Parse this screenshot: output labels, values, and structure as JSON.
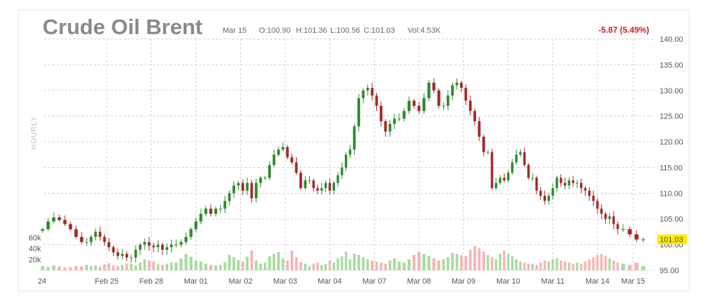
{
  "header": {
    "title": "Crude Oil Brent",
    "date": "Mar 15",
    "open": "O:100.90",
    "high": "H:101.36",
    "low": "L:100.56",
    "close": "C:101.03",
    "volume": "Vol:4.53K",
    "change": "-5.87 (5.49%)"
  },
  "side_label": "HOURLY",
  "colors": {
    "up": "#2e8b2e",
    "down": "#a52a2a",
    "vol_up": "#a8dca0",
    "vol_down": "#f4b6b6",
    "last_bg": "#ffea00",
    "change": "#cc1f1f"
  },
  "chart_data": {
    "type": "candlestick",
    "price_axis": {
      "min": 95,
      "max": 140,
      "ticks": [
        "95.00",
        "100.00",
        "105.00",
        "110.00",
        "115.00",
        "120.00",
        "125.00",
        "130.00",
        "135.00",
        "140.00"
      ]
    },
    "volume_axis": {
      "ticks": [
        "20k",
        "40k",
        "60k"
      ],
      "max": 80000
    },
    "last_price": "101.03",
    "x_ticks": [
      "24",
      "Feb 25",
      "Feb 28",
      "Mar 01",
      "Mar 02",
      "Mar 03",
      "Mar 04",
      "Mar 07",
      "Mar 08",
      "Mar 09",
      "Mar 10",
      "Mar 11",
      "Mar 14",
      "Mar 15"
    ],
    "closes": [
      [
        103.0,
        104.5,
        105.3,
        104.8,
        104.0,
        103.0,
        101.5,
        100.5
      ],
      [
        100.5,
        101.5,
        102.5,
        101.5,
        100.5,
        99.5,
        98.5,
        97.8,
        98.2,
        97.5
      ],
      [
        97.5,
        99.0,
        100.0,
        100.5,
        99.8,
        99.5,
        100.0,
        99.0,
        99.5,
        100.0
      ],
      [
        100.0,
        100.5,
        101.5,
        103.0,
        104.5,
        106.0,
        107.0,
        106.0,
        107.0
      ],
      [
        107.0,
        108.5,
        110.0,
        111.5,
        112.0,
        110.5,
        112.0,
        109.0,
        112.0,
        113.0
      ],
      [
        113.0,
        115.5,
        117.5,
        118.5,
        119.0,
        117.0,
        116.0,
        114.0,
        111.0,
        112.5
      ],
      [
        112.5,
        111.0,
        110.5,
        111.0,
        112.0,
        110.5,
        112.0,
        113.5,
        115.0,
        117.5,
        118.5
      ],
      [
        123.0,
        128.5,
        130.0,
        130.5,
        129.0,
        127.0,
        124.0,
        122.0,
        123.5,
        124.5
      ],
      [
        124.5,
        126.0,
        128.0,
        127.0,
        126.0,
        128.5,
        131.5,
        130.0,
        127.0
      ],
      [
        127.0,
        129.0,
        131.0,
        131.5,
        130.5,
        128.0,
        126.0,
        124.0,
        121.0,
        118.0
      ],
      [
        118.0,
        111.0,
        112.0,
        113.0,
        112.5,
        114.0,
        116.0,
        117.5,
        118.0,
        115.5,
        113.0
      ],
      [
        113.0,
        110.5,
        109.5,
        108.5,
        109.5,
        111.0,
        113.0,
        112.0,
        111.5,
        112.5,
        112.0
      ],
      [
        112.0,
        111.0,
        110.5,
        109.5,
        108.5,
        107.0,
        106.0,
        105.0,
        105.5,
        104.0,
        103.0
      ],
      [
        103.0,
        102.0,
        101.0,
        101.03
      ]
    ],
    "volumes": [
      [
        8,
        6,
        9,
        7,
        5,
        6,
        8,
        7
      ],
      [
        10,
        8,
        9,
        7,
        11,
        13,
        9,
        8,
        10,
        12
      ],
      [
        12,
        9,
        14,
        20,
        18,
        16,
        11,
        10,
        12,
        14
      ],
      [
        14,
        22,
        30,
        25,
        18,
        16,
        12,
        10,
        9
      ],
      [
        10,
        15,
        28,
        24,
        19,
        16,
        25,
        36,
        18,
        12
      ],
      [
        14,
        26,
        30,
        33,
        22,
        18,
        36,
        24,
        15,
        12
      ],
      [
        8,
        12,
        14,
        10,
        12,
        18,
        14,
        22,
        26,
        34,
        20
      ],
      [
        30,
        28,
        24,
        20,
        18,
        16,
        14,
        12,
        18,
        22
      ],
      [
        16,
        14,
        20,
        28,
        34,
        30,
        26,
        22,
        18
      ],
      [
        20,
        24,
        32,
        30,
        28,
        26,
        38,
        44,
        40,
        34
      ],
      [
        28,
        24,
        20,
        30,
        36,
        30,
        26,
        20,
        16,
        14,
        12
      ],
      [
        12,
        10,
        14,
        18,
        16,
        20,
        22,
        18,
        16,
        14,
        12
      ],
      [
        14,
        12,
        16,
        20,
        24,
        28,
        30,
        26,
        22,
        18,
        14
      ],
      [
        12,
        10,
        14,
        8
      ]
    ]
  }
}
